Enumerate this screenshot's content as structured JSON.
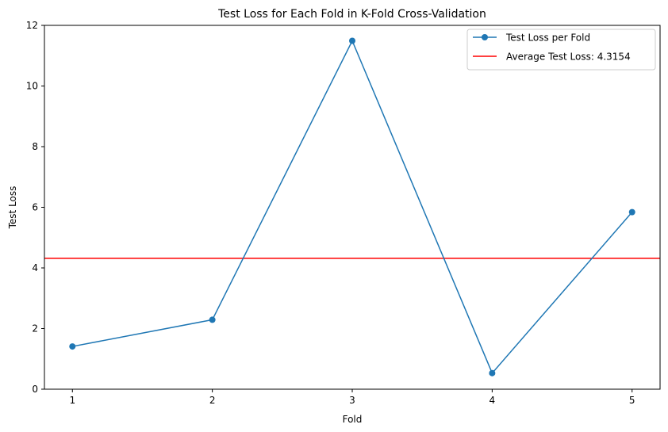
{
  "chart_data": {
    "type": "line",
    "title": "Test Loss for Each Fold in K-Fold Cross-Validation",
    "xlabel": "Fold",
    "ylabel": "Test Loss",
    "x": [
      1,
      2,
      3,
      4,
      5
    ],
    "xlim": [
      0.8,
      5.2
    ],
    "ylim": [
      0,
      12
    ],
    "xticks": [
      1,
      2,
      3,
      4,
      5
    ],
    "yticks": [
      0,
      2,
      4,
      6,
      8,
      10,
      12
    ],
    "grid": false,
    "legend_position": "upper right",
    "series": [
      {
        "name": "Test Loss per Fold",
        "values": [
          1.41,
          2.29,
          11.49,
          0.53,
          5.84
        ],
        "color": "#1f77b4",
        "marker": "circle"
      }
    ],
    "reference_lines": [
      {
        "orientation": "horizontal",
        "value": 4.3154,
        "name": "Average Test Loss: 4.3154",
        "color": "#ff0000"
      }
    ]
  }
}
